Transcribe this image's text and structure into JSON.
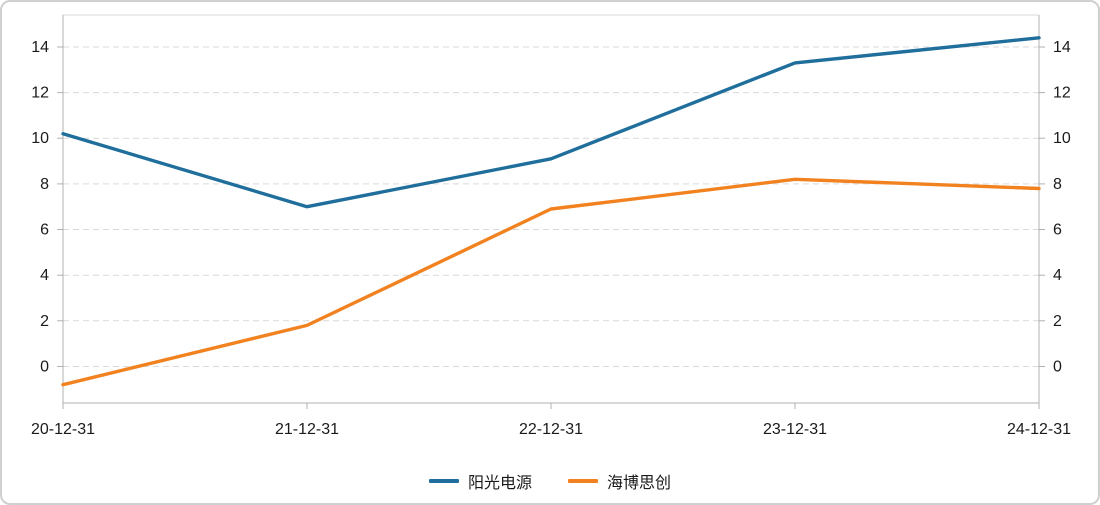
{
  "chart_data": {
    "type": "line",
    "x": [
      "20-12-31",
      "21-12-31",
      "22-12-31",
      "23-12-31",
      "24-12-31"
    ],
    "series": [
      {
        "name": "阳光电源",
        "color": "#1f6e9c",
        "values": [
          10.2,
          7.0,
          9.1,
          13.3,
          14.4
        ]
      },
      {
        "name": "海博思创",
        "color": "#f28220",
        "values": [
          -0.8,
          1.8,
          6.9,
          8.2,
          7.8
        ]
      }
    ],
    "yticks": [
      0,
      2,
      4,
      6,
      8,
      10,
      12,
      14
    ],
    "ylim": [
      -1.6,
      15.4
    ],
    "dual_y_axis": true,
    "grid": true,
    "grid_style": "dashed",
    "legend_position": "bottom",
    "axis_color": "#b0b0b0",
    "grid_color": "#d9d9d9",
    "text_color": "#1a1a1a"
  }
}
